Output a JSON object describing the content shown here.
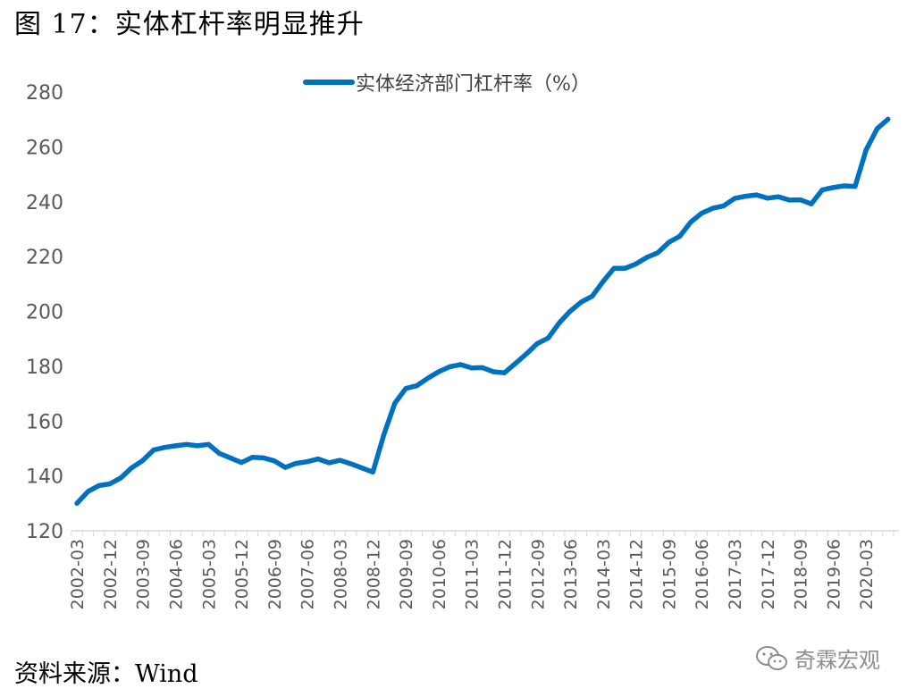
{
  "figure": {
    "title": "图 17：实体杠杆率明显推升",
    "source": "资料来源：Wind",
    "watermark": "奇霖宏观"
  },
  "chart_data": {
    "type": "line",
    "ylim": [
      120,
      280
    ],
    "y_ticks": [
      120,
      140,
      160,
      180,
      200,
      220,
      240,
      260,
      280
    ],
    "x_tick_labels": [
      "2002-03",
      "2002-12",
      "2003-09",
      "2004-06",
      "2005-03",
      "2005-12",
      "2006-09",
      "2007-06",
      "2008-03",
      "2008-12",
      "2009-09",
      "2010-06",
      "2011-03",
      "2011-12",
      "2012-09",
      "2013-06",
      "2014-03",
      "2014-12",
      "2015-09",
      "2016-06",
      "2017-03",
      "2017-12",
      "2018-09",
      "2019-06",
      "2020-03"
    ],
    "legend_position": "top",
    "grid": false,
    "color": "#0070c0",
    "series": [
      {
        "name": "实体经济部门杠杆率（%）",
        "x": [
          "2002-03",
          "2002-06",
          "2002-09",
          "2002-12",
          "2003-03",
          "2003-06",
          "2003-09",
          "2003-12",
          "2004-03",
          "2004-06",
          "2004-09",
          "2004-12",
          "2005-03",
          "2005-06",
          "2005-09",
          "2005-12",
          "2006-03",
          "2006-06",
          "2006-09",
          "2006-12",
          "2007-03",
          "2007-06",
          "2007-09",
          "2007-12",
          "2008-03",
          "2008-06",
          "2008-09",
          "2008-12",
          "2009-03",
          "2009-06",
          "2009-09",
          "2009-12",
          "2010-03",
          "2010-06",
          "2010-09",
          "2010-12",
          "2011-03",
          "2011-06",
          "2011-09",
          "2011-12",
          "2012-03",
          "2012-06",
          "2012-09",
          "2012-12",
          "2013-03",
          "2013-06",
          "2013-09",
          "2013-12",
          "2014-03",
          "2014-06",
          "2014-09",
          "2014-12",
          "2015-03",
          "2015-06",
          "2015-09",
          "2015-12",
          "2016-03",
          "2016-06",
          "2016-09",
          "2016-12",
          "2017-03",
          "2017-06",
          "2017-09",
          "2017-12",
          "2018-03",
          "2018-06",
          "2018-09",
          "2018-12",
          "2019-03",
          "2019-06",
          "2019-09",
          "2019-12",
          "2020-03",
          "2020-06",
          "2020-09"
        ],
        "values": [
          130,
          134.3,
          136.5,
          137.1,
          139.3,
          143,
          145.6,
          149.5,
          150.4,
          151,
          151.5,
          151,
          151.5,
          148.2,
          146.6,
          144.9,
          146.8,
          146.6,
          145.5,
          143.1,
          144.6,
          145.2,
          146.2,
          144.8,
          145.7,
          144.4,
          142.9,
          141.4,
          155,
          166.5,
          171.9,
          172.9,
          175.6,
          178,
          179.8,
          180.6,
          179.4,
          179.5,
          178,
          177.6,
          181,
          184.5,
          188.3,
          190.3,
          195.8,
          200.1,
          203.4,
          205.5,
          210.9,
          215.7,
          215.7,
          217.3,
          219.7,
          221.4,
          225.2,
          227.4,
          232.6,
          235.8,
          237.6,
          238.5,
          241.2,
          242,
          242.5,
          241.3,
          241.8,
          240.6,
          240.7,
          239.2,
          244.3,
          245.2,
          245.8,
          245.6,
          258.9,
          266.6,
          270.1
        ]
      }
    ]
  }
}
